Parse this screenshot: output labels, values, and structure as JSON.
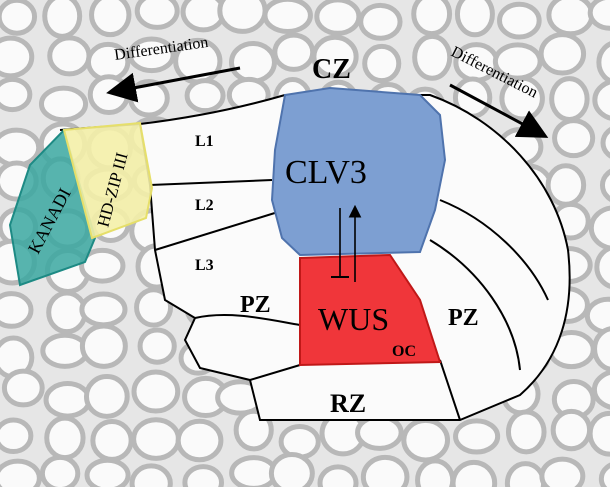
{
  "labels": {
    "diff_left": "Differentiation",
    "diff_right": "Differentiation",
    "cz": "CZ",
    "clv3": "CLV3",
    "wus": "WUS",
    "pz_left": "PZ",
    "pz_right": "PZ",
    "oc": "OC",
    "rz": "RZ",
    "l1": "L1",
    "l2": "L2",
    "l3": "L3",
    "kanadi": "KANADI",
    "hdzip": "HD-ZIP III"
  },
  "colors": {
    "clv3": "#7d9fd2",
    "wus": "#f0363a",
    "hdzip": "#f4f0a8",
    "kanadi": "#3aa7a0",
    "background": "#e4e4e4"
  }
}
